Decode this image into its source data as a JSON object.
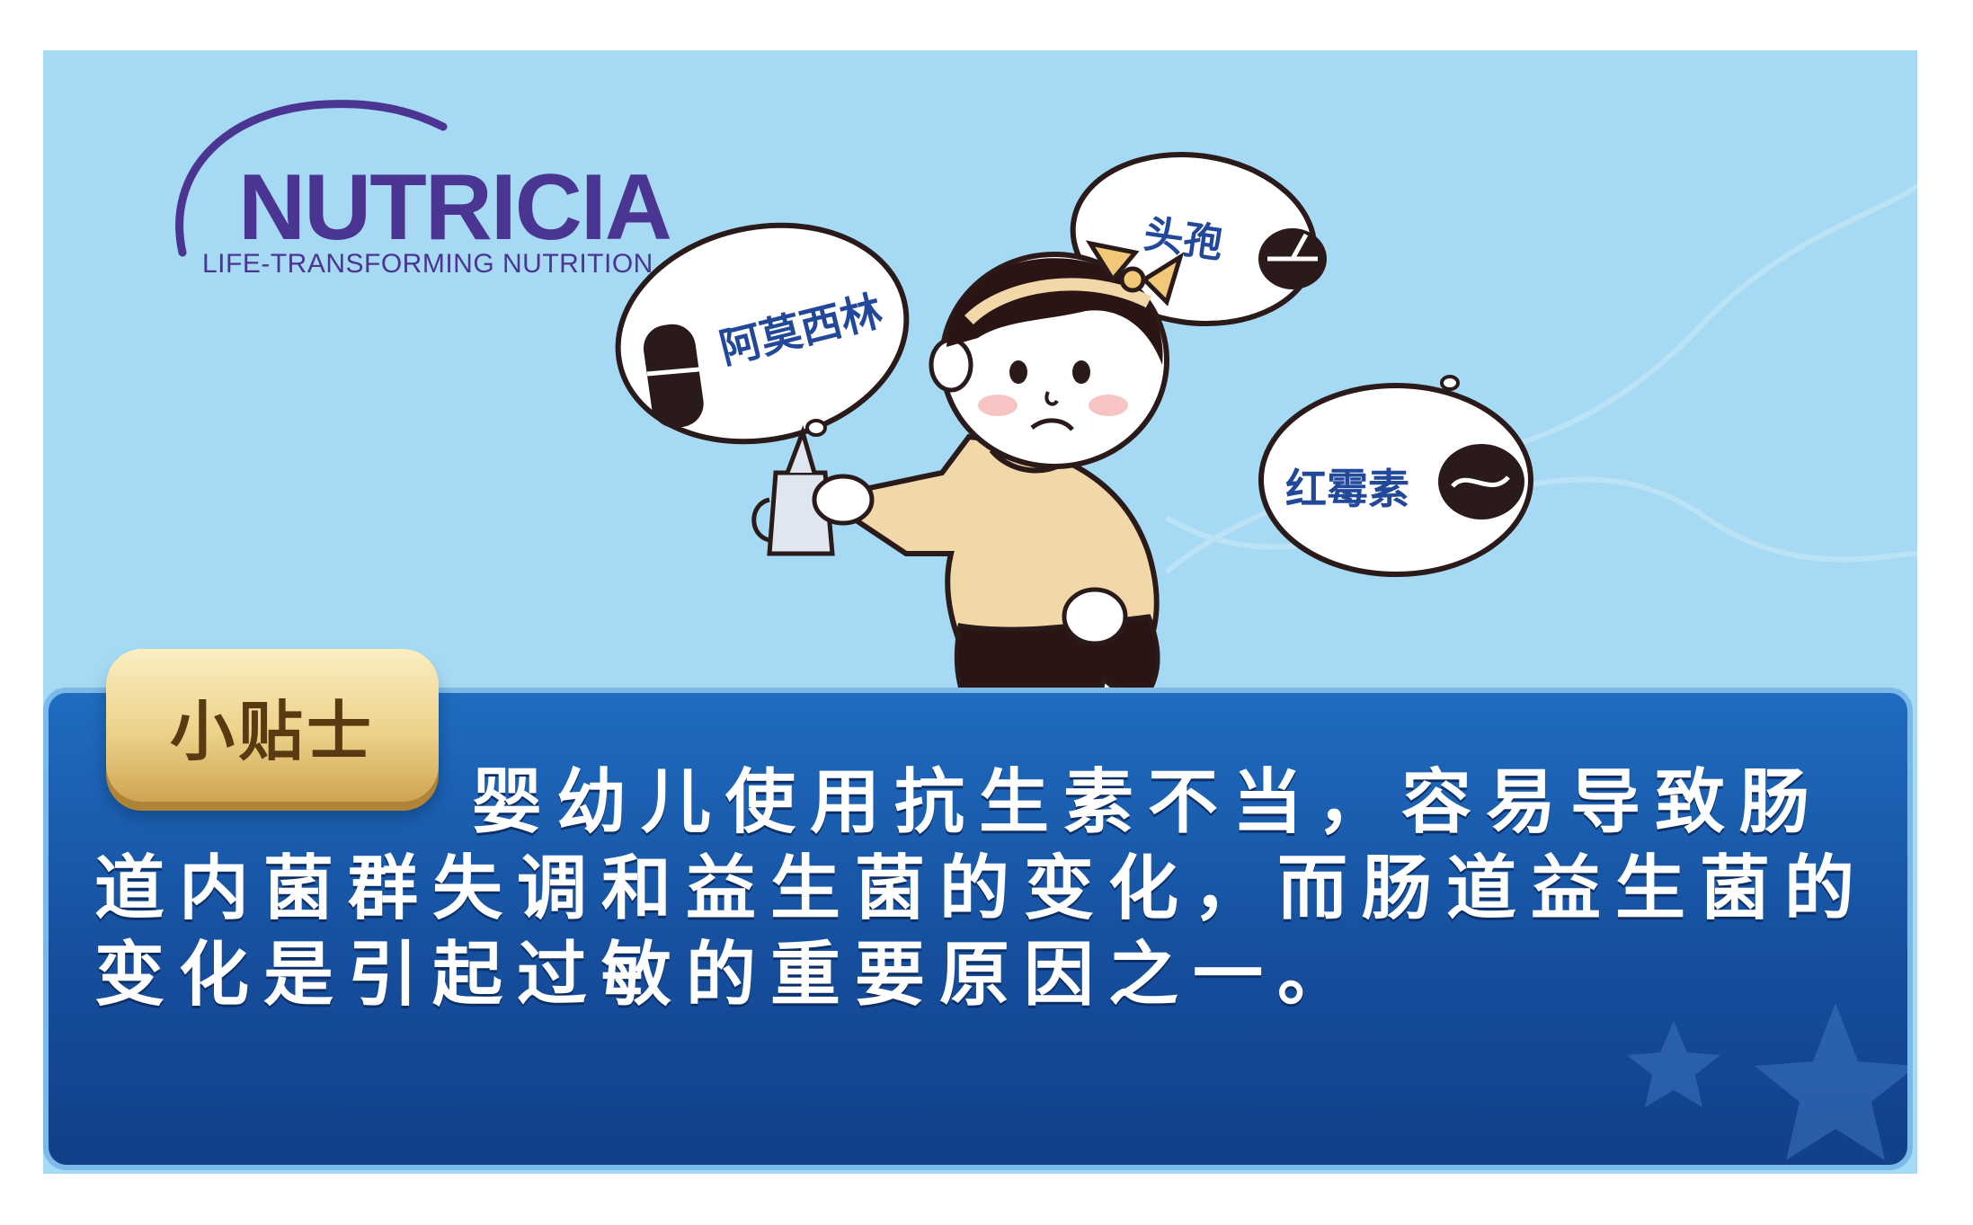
{
  "brand": {
    "name": "NUTRICIA",
    "tagline": "LIFE-TRANSFORMING NUTRITION",
    "color": "#4b3592"
  },
  "illustration": {
    "bubbles": [
      {
        "label": "阿莫西林"
      },
      {
        "label": "头孢"
      },
      {
        "label": "红霉素"
      }
    ]
  },
  "tip": {
    "badge_label": "小贴士",
    "text": "婴幼儿使用抗生素不当，容易导致肠道内菌群失调和益生菌的变化，而肠道益生菌的变化是引起过敏的重要原因之一。"
  },
  "colors": {
    "sky": "#a6d9f3",
    "panel": "#164f9e",
    "badge": "#ecd28a",
    "bubble_text": "#22489a"
  }
}
